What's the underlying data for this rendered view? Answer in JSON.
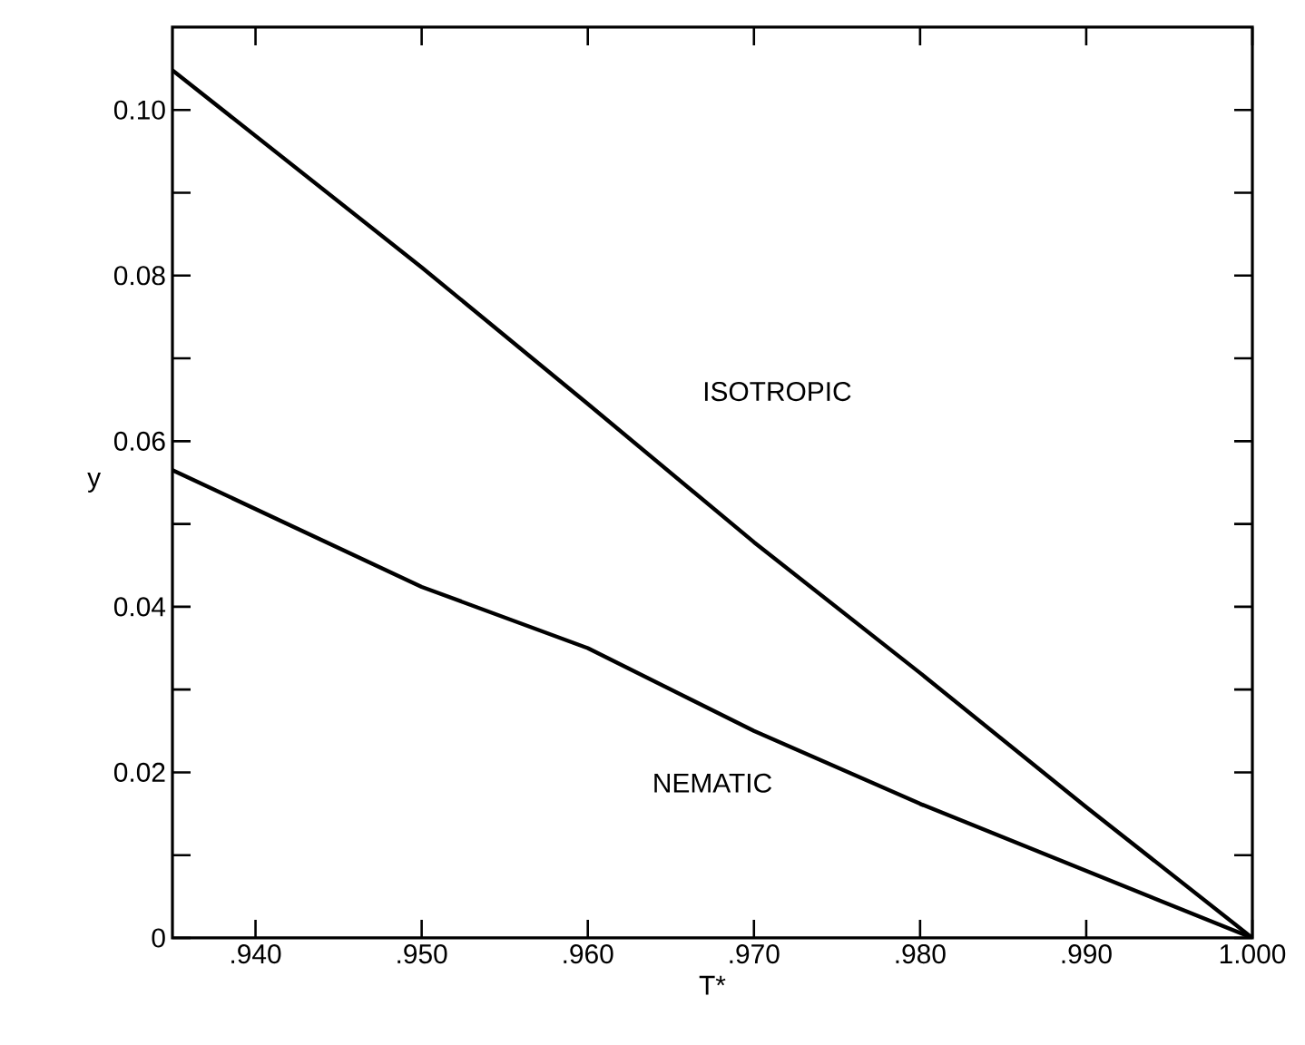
{
  "chart_data": {
    "type": "line",
    "xlabel": "T*",
    "ylabel": "y",
    "xlim": [
      0.935,
      1.0
    ],
    "ylim": [
      0,
      0.11
    ],
    "xticks": [
      {
        "value": 0.94,
        "label": ".940"
      },
      {
        "value": 0.95,
        "label": ".950"
      },
      {
        "value": 0.96,
        "label": ".960"
      },
      {
        "value": 0.97,
        "label": ".970"
      },
      {
        "value": 0.98,
        "label": ".980"
      },
      {
        "value": 0.99,
        "label": ".990"
      },
      {
        "value": 1.0,
        "label": "1.000"
      }
    ],
    "yticks": [
      0,
      {
        "value": 0.01,
        "label": null
      },
      {
        "value": 0.02,
        "label": "0.02"
      },
      {
        "value": 0.03,
        "label": null
      },
      {
        "value": 0.04,
        "label": "0.04"
      },
      {
        "value": 0.05,
        "label": null
      },
      {
        "value": 0.06,
        "label": "0.06"
      },
      {
        "value": 0.07,
        "label": null
      },
      {
        "value": 0.08,
        "label": "0.08"
      },
      {
        "value": 0.09,
        "label": null
      },
      {
        "value": 0.1,
        "label": "0.10"
      }
    ],
    "grid": false,
    "legend": false,
    "marker": "none",
    "line_style": "solid",
    "series": [
      {
        "color": "#000000",
        "x": [
          0.935,
          0.95,
          0.96,
          0.97,
          0.98,
          0.99,
          1.0
        ],
        "values": [
          0.1048,
          0.081,
          0.0645,
          0.0478,
          0.032,
          0.0158,
          0
        ]
      },
      {
        "color": "#000000",
        "x": [
          0.935,
          0.95,
          0.96,
          0.97,
          0.98,
          0.99,
          1.0
        ],
        "values": [
          0.0565,
          0.0424,
          0.035,
          0.025,
          0.0162,
          0.0081,
          0
        ]
      }
    ],
    "annotations": [
      "ISOTROPIC",
      "NEMATIC"
    ]
  }
}
